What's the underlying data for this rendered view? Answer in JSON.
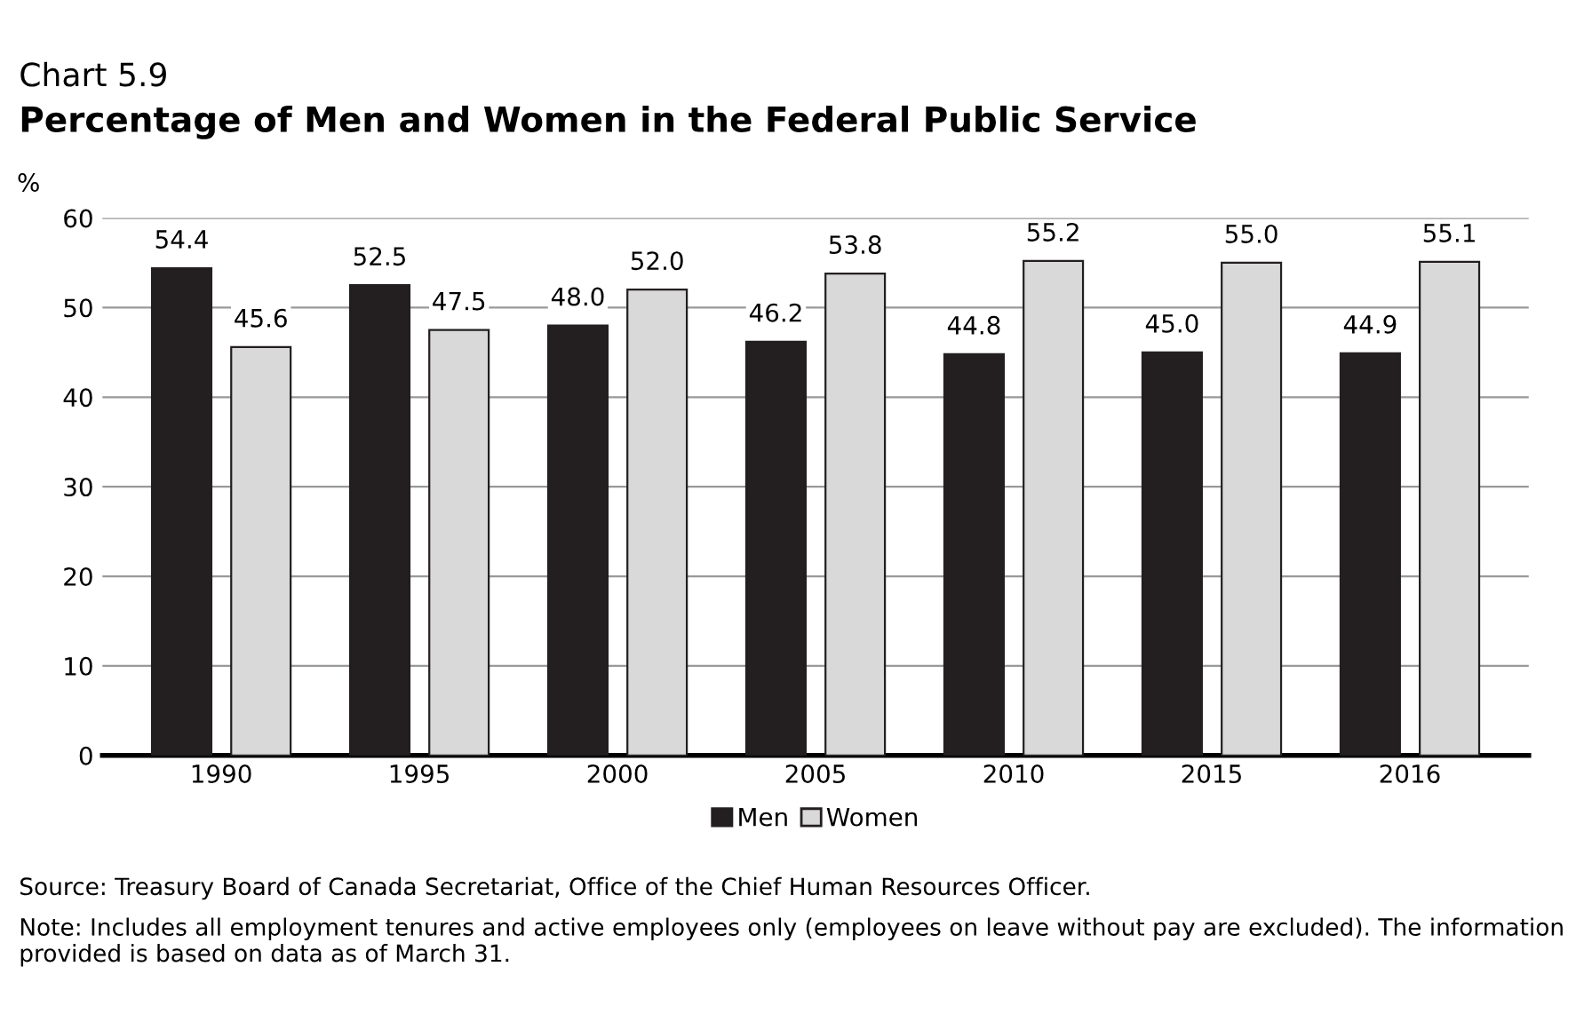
{
  "chart_data": {
    "type": "bar",
    "title": "Chart 5.9",
    "subtitle": "Percentage of Men and Women in the Federal Public Service",
    "ylabel": "%",
    "categories": [
      "1990",
      "1995",
      "2000",
      "2005",
      "2010",
      "2015",
      "2016"
    ],
    "series": [
      {
        "name": "Men",
        "color": "#231f20",
        "values": [
          54.4,
          52.5,
          48.0,
          46.2,
          44.8,
          45.0,
          44.9
        ],
        "value_labels": [
          "54.4",
          "52.5",
          "48.0",
          "46.2",
          "44.8",
          "45.0",
          "44.9"
        ]
      },
      {
        "name": "Women",
        "color": "#d9d9d9",
        "values": [
          45.6,
          47.5,
          52.0,
          53.8,
          55.2,
          55.0,
          55.1
        ],
        "value_labels": [
          "45.6",
          "47.5",
          "52.0",
          "53.8",
          "55.2",
          "55.0",
          "55.1"
        ]
      }
    ],
    "ylim": [
      0,
      60
    ],
    "yticks": [
      0,
      10,
      20,
      30,
      40,
      50,
      60
    ],
    "grid": "y",
    "legend": "bottom",
    "annotations": [
      "Source: Treasury Board of Canada Secretariat, Office of the Chief Human Resources Officer.",
      "Note: Includes all employment tenures and active employees only (employees on leave without pay are excluded). The information provided is based on data as of March 31."
    ]
  }
}
